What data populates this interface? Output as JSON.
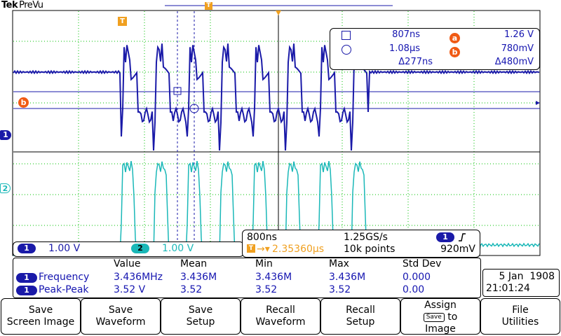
{
  "header": {
    "brand": "Tek",
    "mode": "PreVu"
  },
  "markers": {
    "trigger_marker": "T",
    "ref_a": "a",
    "ref_b": "b",
    "ch1": "1",
    "ch2": "2"
  },
  "cursor_readout": {
    "row1": {
      "time": "807ns",
      "ref": "a",
      "value": "1.26 V"
    },
    "row2": {
      "time": "1.08µs",
      "ref": "b",
      "value": "780mV"
    },
    "row3": {
      "delta_time": "Δ277ns",
      "delta_value": "Δ480mV"
    }
  },
  "channels": {
    "ch1": {
      "label": "1",
      "scale": "1.00 V",
      "color": "#1a1aa8"
    },
    "ch2": {
      "label": "2",
      "scale": "1.00 V",
      "color": "#1ab8b8"
    }
  },
  "horizontal": {
    "timebase": "800ns",
    "sample_rate": "1.25GS/s",
    "trigger_source": "1",
    "trigger_slope_icon": "rising-edge-icon",
    "trigger_position": "2.35360µs",
    "record_length": "10k points",
    "trigger_level": "920mV"
  },
  "measurements": {
    "headers": [
      "Value",
      "Mean",
      "Min",
      "Max",
      "Std Dev"
    ],
    "rows": [
      {
        "channel": "1",
        "name": "Frequency",
        "value": "3.436MHz",
        "mean": "3.436M",
        "min": "3.436M",
        "max": "3.436M",
        "std": "0.000"
      },
      {
        "channel": "1",
        "name": "Peak-Peak",
        "value": "3.52 V",
        "mean": "3.52",
        "min": "3.52",
        "max": "3.52",
        "std": "0.00"
      }
    ]
  },
  "datetime": {
    "date": "5 Jan  1908",
    "time": "21:01:24"
  },
  "menu": [
    {
      "line1": "Save",
      "line2": "Screen Image"
    },
    {
      "line1": "Save",
      "line2": "Waveform"
    },
    {
      "line1": "Save",
      "line2": "Setup"
    },
    {
      "line1": "Recall",
      "line2": "Waveform"
    },
    {
      "line1": "Recall",
      "line2": "Setup"
    },
    {
      "line1": "Assign",
      "line2_key": "Save",
      "line2_rest": "to",
      "line3": "Image"
    },
    {
      "line1": "File",
      "line2": "Utilities"
    }
  ],
  "colors": {
    "ch1": "#1a1aa8",
    "ch2": "#1ab8b8",
    "trigger": "#f0a020",
    "reference": "#f05a14"
  }
}
